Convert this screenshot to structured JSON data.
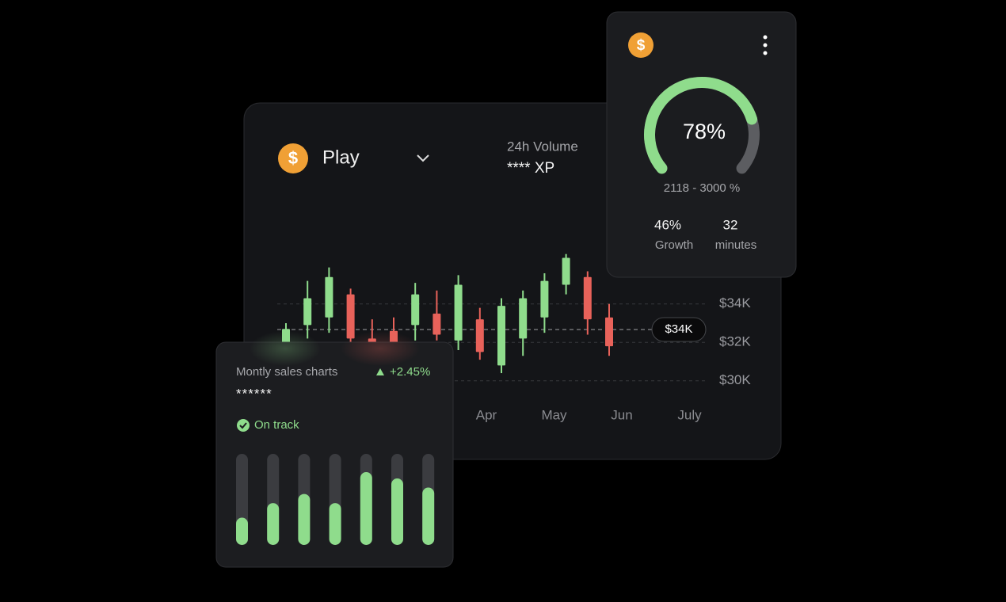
{
  "coin_symbol": "$",
  "main_card": {
    "title": "Play",
    "volume_label": "24h Volume",
    "volume_value": "**** XP",
    "price_tag": "$34K",
    "chart": {
      "type": "candlestick",
      "categories": [
        null,
        null,
        null,
        null,
        null,
        null,
        null,
        null,
        null,
        null,
        null,
        null,
        null,
        null,
        null,
        null
      ],
      "open": [
        32000,
        32900,
        33300,
        34500,
        32200,
        32600,
        32900,
        33500,
        32100,
        33200,
        30800,
        32200,
        33300,
        35000,
        35400,
        33300
      ],
      "high": [
        33000,
        35200,
        35900,
        34800,
        33200,
        33300,
        35100,
        34700,
        35500,
        33800,
        34300,
        34700,
        35600,
        36600,
        35700,
        34000
      ],
      "low": [
        32000,
        32200,
        32500,
        32000,
        31900,
        31900,
        32100,
        32100,
        31600,
        31100,
        30400,
        31300,
        32500,
        34500,
        32400,
        31300
      ],
      "close": [
        32700,
        34300,
        35400,
        32200,
        32000,
        32000,
        34500,
        32400,
        35000,
        31500,
        33900,
        34300,
        35200,
        36400,
        33200,
        31800
      ],
      "up_color": "#8fdc8c",
      "down_color": "#e8625a",
      "ylim": [
        29000,
        39000
      ],
      "yticks": [
        {
          "value": 30000,
          "label": "$30K"
        },
        {
          "value": 32000,
          "label": "$32K"
        },
        {
          "value": 34000,
          "label": "$34K"
        }
      ],
      "grid": true,
      "month_labels": [
        "Apr",
        "May",
        "Jun",
        "July"
      ]
    }
  },
  "gauge_card": {
    "chart": {
      "type": "gauge",
      "value": 78,
      "value_label": "78%",
      "lim": [
        0,
        100
      ],
      "color": "#8fdc8c",
      "track_color": "#5c5d61"
    },
    "range": "2118 - 3000 %",
    "stats": [
      {
        "value": "46%",
        "label": "Growth"
      },
      {
        "value": "32",
        "label": "minutes"
      }
    ]
  },
  "sales_card": {
    "title": "Montly sales charts",
    "change": "+2.45%",
    "amount": "******",
    "status": "On track",
    "chart": {
      "type": "bar",
      "categories": [
        null,
        null,
        null,
        null,
        null,
        null,
        null
      ],
      "values": [
        30,
        46,
        56,
        46,
        80,
        73,
        63
      ],
      "ylim": [
        0,
        100
      ],
      "color": "#8fdc8c",
      "track_color": "#3b3c40"
    }
  }
}
